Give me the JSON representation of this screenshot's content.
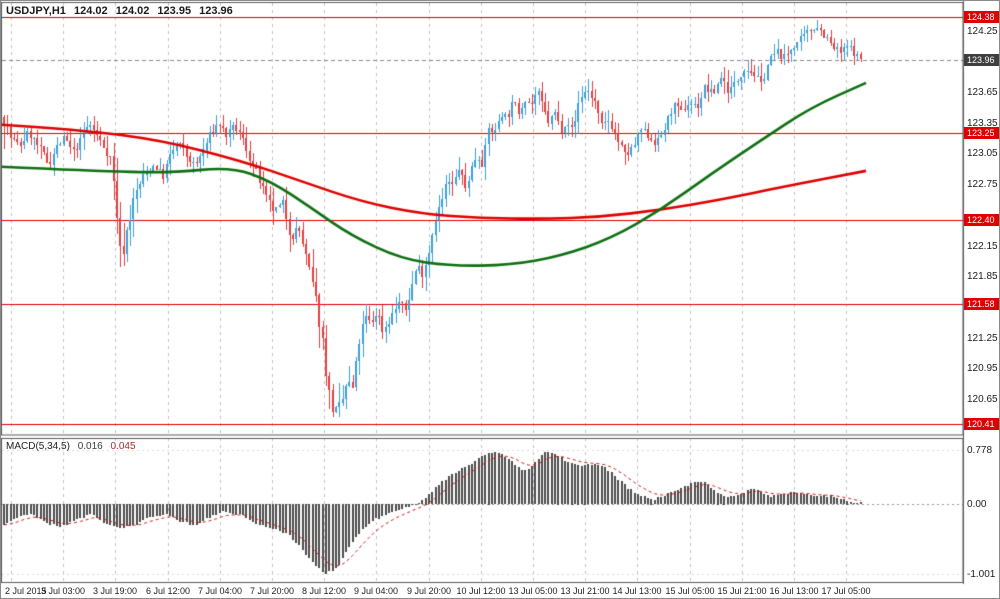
{
  "header": {
    "symbol_period": "USDJPY,H1",
    "open": "124.02",
    "high": "124.02",
    "low": "123.95",
    "close": "123.96"
  },
  "macd_header": {
    "label": "MACD(5,34,5)",
    "value_main": "0.016",
    "value_signal": "0.045"
  },
  "colors": {
    "badge_level": "#e00000",
    "badge_current": "#3f3f3f",
    "grid": "#c4c4c4",
    "frame": "#5a5a5a",
    "axis_text": "#1c1c1c"
  },
  "price_axis": {
    "ticks": [
      {
        "label": "124.25",
        "value": 124.25
      },
      {
        "label": "123.65",
        "value": 123.65
      },
      {
        "label": "123.35",
        "value": 123.35
      },
      {
        "label": "123.05",
        "value": 123.05
      },
      {
        "label": "122.75",
        "value": 122.75
      },
      {
        "label": "122.15",
        "value": 122.15
      },
      {
        "label": "121.85",
        "value": 121.85
      },
      {
        "label": "121.25",
        "value": 121.25
      },
      {
        "label": "120.95",
        "value": 120.95
      },
      {
        "label": "120.65",
        "value": 120.65
      }
    ]
  },
  "price_badges": [
    {
      "label": "124.38",
      "value": 124.38,
      "style": "level"
    },
    {
      "label": "123.96",
      "value": 123.96,
      "style": "current"
    },
    {
      "label": "123.25",
      "value": 123.25,
      "style": "level"
    },
    {
      "label": "122.40",
      "value": 122.4,
      "style": "level"
    },
    {
      "label": "121.58",
      "value": 121.58,
      "style": "level"
    },
    {
      "label": "120.41",
      "value": 120.41,
      "style": "level"
    }
  ],
  "macd_axis": {
    "ticks": [
      {
        "label": "0.778",
        "value": 0.778
      },
      {
        "label": "0.00",
        "value": 0.0
      },
      {
        "label": "-1.001",
        "value": -1.001
      }
    ]
  },
  "chart_data": [
    {
      "type": "candlestick",
      "title": "USDJPY,H1",
      "symbol": "USDJPY",
      "timeframe": "H1",
      "ohlc_current": {
        "open": 124.02,
        "high": 124.02,
        "low": 123.95,
        "close": 123.96
      },
      "ylim": [
        120.3,
        124.52
      ],
      "levels": [
        124.38,
        123.25,
        122.4,
        121.58,
        120.41
      ],
      "current_price": 123.96,
      "up_color": "#3d9fd6",
      "down_color": "#e04040",
      "ma_red_color": "#e00000",
      "ma_green_color": "#0e6f12",
      "level_color": "#e00000",
      "x_labels": [
        "2 Jul 2015",
        "3 Jul 03:00",
        "3 Jul 19:00",
        "6 Jul 12:00",
        "7 Jul 04:00",
        "7 Jul 20:00",
        "8 Jul 12:00",
        "9 Jul 04:00",
        "9 Jul 20:00",
        "10 Jul 12:00",
        "13 Jul 05:00",
        "13 Jul 21:00",
        "14 Jul 13:00",
        "15 Jul 05:00",
        "15 Jul 21:00",
        "16 Jul 13:00",
        "17 Jul 05:00"
      ],
      "price_path": [
        [
          0,
          123.52,
          0.2
        ],
        [
          8,
          123.22,
          0.12
        ],
        [
          18,
          123.12,
          0.1
        ],
        [
          28,
          123.26,
          0.09
        ],
        [
          38,
          123.1,
          0.09
        ],
        [
          48,
          122.95,
          0.1
        ],
        [
          56,
          123.12,
          0.08
        ],
        [
          64,
          123.2,
          0.08
        ],
        [
          72,
          123.05,
          0.09
        ],
        [
          80,
          123.18,
          0.08
        ],
        [
          88,
          123.35,
          0.09
        ],
        [
          96,
          123.22,
          0.08
        ],
        [
          104,
          123.1,
          0.08
        ],
        [
          110,
          123.0,
          0.1
        ],
        [
          115,
          122.55,
          0.16
        ],
        [
          120,
          122.0,
          0.18
        ],
        [
          126,
          122.3,
          0.14
        ],
        [
          134,
          122.65,
          0.11
        ],
        [
          144,
          122.85,
          0.09
        ],
        [
          154,
          122.95,
          0.08
        ],
        [
          162,
          122.82,
          0.08
        ],
        [
          170,
          123.05,
          0.09
        ],
        [
          178,
          123.15,
          0.08
        ],
        [
          186,
          123.02,
          0.08
        ],
        [
          194,
          122.92,
          0.08
        ],
        [
          202,
          123.08,
          0.08
        ],
        [
          210,
          123.25,
          0.08
        ],
        [
          218,
          123.35,
          0.08
        ],
        [
          226,
          123.22,
          0.08
        ],
        [
          234,
          123.32,
          0.08
        ],
        [
          242,
          123.18,
          0.09
        ],
        [
          250,
          122.98,
          0.1
        ],
        [
          258,
          122.8,
          0.1
        ],
        [
          266,
          122.58,
          0.1
        ],
        [
          274,
          122.48,
          0.1
        ],
        [
          282,
          122.56,
          0.1
        ],
        [
          290,
          122.25,
          0.12
        ],
        [
          298,
          122.32,
          0.1
        ],
        [
          306,
          122.0,
          0.12
        ],
        [
          314,
          121.68,
          0.14
        ],
        [
          322,
          121.2,
          0.16
        ],
        [
          328,
          120.7,
          0.18
        ],
        [
          334,
          120.5,
          0.16
        ],
        [
          340,
          120.58,
          0.14
        ],
        [
          346,
          120.82,
          0.13
        ],
        [
          352,
          120.75,
          0.12
        ],
        [
          358,
          121.2,
          0.12
        ],
        [
          364,
          121.45,
          0.1
        ],
        [
          370,
          121.38,
          0.1
        ],
        [
          376,
          121.52,
          0.1
        ],
        [
          382,
          121.32,
          0.1
        ],
        [
          390,
          121.45,
          0.09
        ],
        [
          398,
          121.6,
          0.09
        ],
        [
          404,
          121.5,
          0.09
        ],
        [
          410,
          121.72,
          0.09
        ],
        [
          416,
          121.95,
          0.1
        ],
        [
          422,
          121.88,
          0.1
        ],
        [
          428,
          122.1,
          0.11
        ],
        [
          434,
          122.42,
          0.11
        ],
        [
          440,
          122.55,
          0.1
        ],
        [
          446,
          122.78,
          0.1
        ],
        [
          452,
          122.72,
          0.09
        ],
        [
          458,
          122.92,
          0.09
        ],
        [
          464,
          122.7,
          0.1
        ],
        [
          470,
          122.88,
          0.09
        ],
        [
          476,
          123.05,
          0.09
        ],
        [
          482,
          122.95,
          0.09
        ],
        [
          488,
          123.3,
          0.1
        ],
        [
          494,
          123.25,
          0.08
        ],
        [
          500,
          123.45,
          0.08
        ],
        [
          506,
          123.4,
          0.08
        ],
        [
          512,
          123.55,
          0.08
        ],
        [
          518,
          123.45,
          0.08
        ],
        [
          524,
          123.6,
          0.08
        ],
        [
          530,
          123.52,
          0.08
        ],
        [
          536,
          123.66,
          0.08
        ],
        [
          542,
          123.5,
          0.08
        ],
        [
          548,
          123.35,
          0.09
        ],
        [
          554,
          123.45,
          0.08
        ],
        [
          560,
          123.28,
          0.09
        ],
        [
          566,
          123.38,
          0.08
        ],
        [
          572,
          123.25,
          0.08
        ],
        [
          578,
          123.58,
          0.09
        ],
        [
          586,
          123.68,
          0.09
        ],
        [
          594,
          123.55,
          0.09
        ],
        [
          600,
          123.3,
          0.1
        ],
        [
          608,
          123.38,
          0.08
        ],
        [
          616,
          123.2,
          0.1
        ],
        [
          624,
          123.02,
          0.11
        ],
        [
          632,
          123.1,
          0.09
        ],
        [
          640,
          123.28,
          0.08
        ],
        [
          648,
          123.22,
          0.08
        ],
        [
          656,
          123.15,
          0.08
        ],
        [
          664,
          123.3,
          0.08
        ],
        [
          672,
          123.52,
          0.09
        ],
        [
          680,
          123.45,
          0.08
        ],
        [
          688,
          123.55,
          0.08
        ],
        [
          696,
          123.5,
          0.08
        ],
        [
          704,
          123.7,
          0.09
        ],
        [
          712,
          123.62,
          0.08
        ],
        [
          720,
          123.8,
          0.08
        ],
        [
          728,
          123.66,
          0.09
        ],
        [
          736,
          123.76,
          0.08
        ],
        [
          744,
          123.9,
          0.08
        ],
        [
          752,
          123.84,
          0.08
        ],
        [
          760,
          123.72,
          0.09
        ],
        [
          768,
          123.96,
          0.08
        ],
        [
          776,
          124.04,
          0.08
        ],
        [
          784,
          123.98,
          0.08
        ],
        [
          792,
          124.1,
          0.08
        ],
        [
          800,
          124.16,
          0.08
        ],
        [
          808,
          124.24,
          0.08
        ],
        [
          816,
          124.3,
          0.07
        ],
        [
          824,
          124.2,
          0.08
        ],
        [
          832,
          124.08,
          0.09
        ],
        [
          840,
          124.04,
          0.08
        ],
        [
          848,
          124.1,
          0.07
        ],
        [
          856,
          124.0,
          0.07
        ],
        [
          862,
          123.96,
          0.05
        ]
      ],
      "ma_red": [
        [
          0,
          123.33
        ],
        [
          80,
          123.28
        ],
        [
          160,
          123.18
        ],
        [
          240,
          122.98
        ],
        [
          300,
          122.78
        ],
        [
          360,
          122.58
        ],
        [
          420,
          122.46
        ],
        [
          480,
          122.42
        ],
        [
          540,
          122.41
        ],
        [
          600,
          122.43
        ],
        [
          660,
          122.5
        ],
        [
          720,
          122.6
        ],
        [
          780,
          122.72
        ],
        [
          865,
          122.88
        ]
      ],
      "ma_green": [
        [
          0,
          122.92
        ],
        [
          90,
          122.88
        ],
        [
          170,
          122.86
        ],
        [
          230,
          122.92
        ],
        [
          270,
          122.78
        ],
        [
          310,
          122.52
        ],
        [
          350,
          122.25
        ],
        [
          400,
          122.02
        ],
        [
          450,
          121.95
        ],
        [
          510,
          121.96
        ],
        [
          560,
          122.05
        ],
        [
          610,
          122.22
        ],
        [
          660,
          122.5
        ],
        [
          710,
          122.85
        ],
        [
          760,
          123.18
        ],
        [
          810,
          123.5
        ],
        [
          865,
          123.74
        ]
      ]
    },
    {
      "type": "bar",
      "title": "MACD(5,34,5)",
      "values_current": {
        "macd": 0.016,
        "signal": 0.045
      },
      "ylim": [
        -1.12,
        0.95
      ],
      "axis_extremes": [
        0.778,
        -1.001
      ],
      "bar_color": "#4d4d4d",
      "signal_color": "#d01a1a",
      "zero_line_color": "#9a9a9a",
      "macd_path": [
        [
          0,
          -0.32
        ],
        [
          15,
          -0.2
        ],
        [
          30,
          -0.14
        ],
        [
          45,
          -0.26
        ],
        [
          60,
          -0.33
        ],
        [
          75,
          -0.22
        ],
        [
          90,
          -0.15
        ],
        [
          105,
          -0.28
        ],
        [
          120,
          -0.35
        ],
        [
          135,
          -0.3
        ],
        [
          150,
          -0.18
        ],
        [
          165,
          -0.14
        ],
        [
          180,
          -0.25
        ],
        [
          195,
          -0.3
        ],
        [
          210,
          -0.18
        ],
        [
          225,
          -0.11
        ],
        [
          240,
          -0.16
        ],
        [
          255,
          -0.28
        ],
        [
          270,
          -0.34
        ],
        [
          285,
          -0.42
        ],
        [
          300,
          -0.62
        ],
        [
          312,
          -0.85
        ],
        [
          324,
          -1.0
        ],
        [
          336,
          -0.92
        ],
        [
          348,
          -0.62
        ],
        [
          360,
          -0.38
        ],
        [
          372,
          -0.24
        ],
        [
          384,
          -0.16
        ],
        [
          396,
          -0.1
        ],
        [
          408,
          -0.04
        ],
        [
          418,
          0.03
        ],
        [
          428,
          0.14
        ],
        [
          438,
          0.28
        ],
        [
          450,
          0.42
        ],
        [
          462,
          0.52
        ],
        [
          474,
          0.62
        ],
        [
          486,
          0.72
        ],
        [
          496,
          0.76
        ],
        [
          506,
          0.68
        ],
        [
          516,
          0.54
        ],
        [
          526,
          0.47
        ],
        [
          536,
          0.62
        ],
        [
          546,
          0.77
        ],
        [
          556,
          0.7
        ],
        [
          568,
          0.6
        ],
        [
          580,
          0.55
        ],
        [
          592,
          0.58
        ],
        [
          604,
          0.52
        ],
        [
          616,
          0.38
        ],
        [
          628,
          0.22
        ],
        [
          640,
          0.12
        ],
        [
          652,
          0.07
        ],
        [
          664,
          0.12
        ],
        [
          676,
          0.2
        ],
        [
          690,
          0.3
        ],
        [
          702,
          0.32
        ],
        [
          712,
          0.22
        ],
        [
          722,
          0.13
        ],
        [
          732,
          0.1
        ],
        [
          742,
          0.16
        ],
        [
          752,
          0.22
        ],
        [
          762,
          0.16
        ],
        [
          772,
          0.11
        ],
        [
          782,
          0.15
        ],
        [
          792,
          0.19
        ],
        [
          802,
          0.16
        ],
        [
          812,
          0.12
        ],
        [
          822,
          0.14
        ],
        [
          832,
          0.1
        ],
        [
          842,
          0.06
        ],
        [
          852,
          0.03
        ],
        [
          862,
          0.016
        ]
      ]
    }
  ]
}
